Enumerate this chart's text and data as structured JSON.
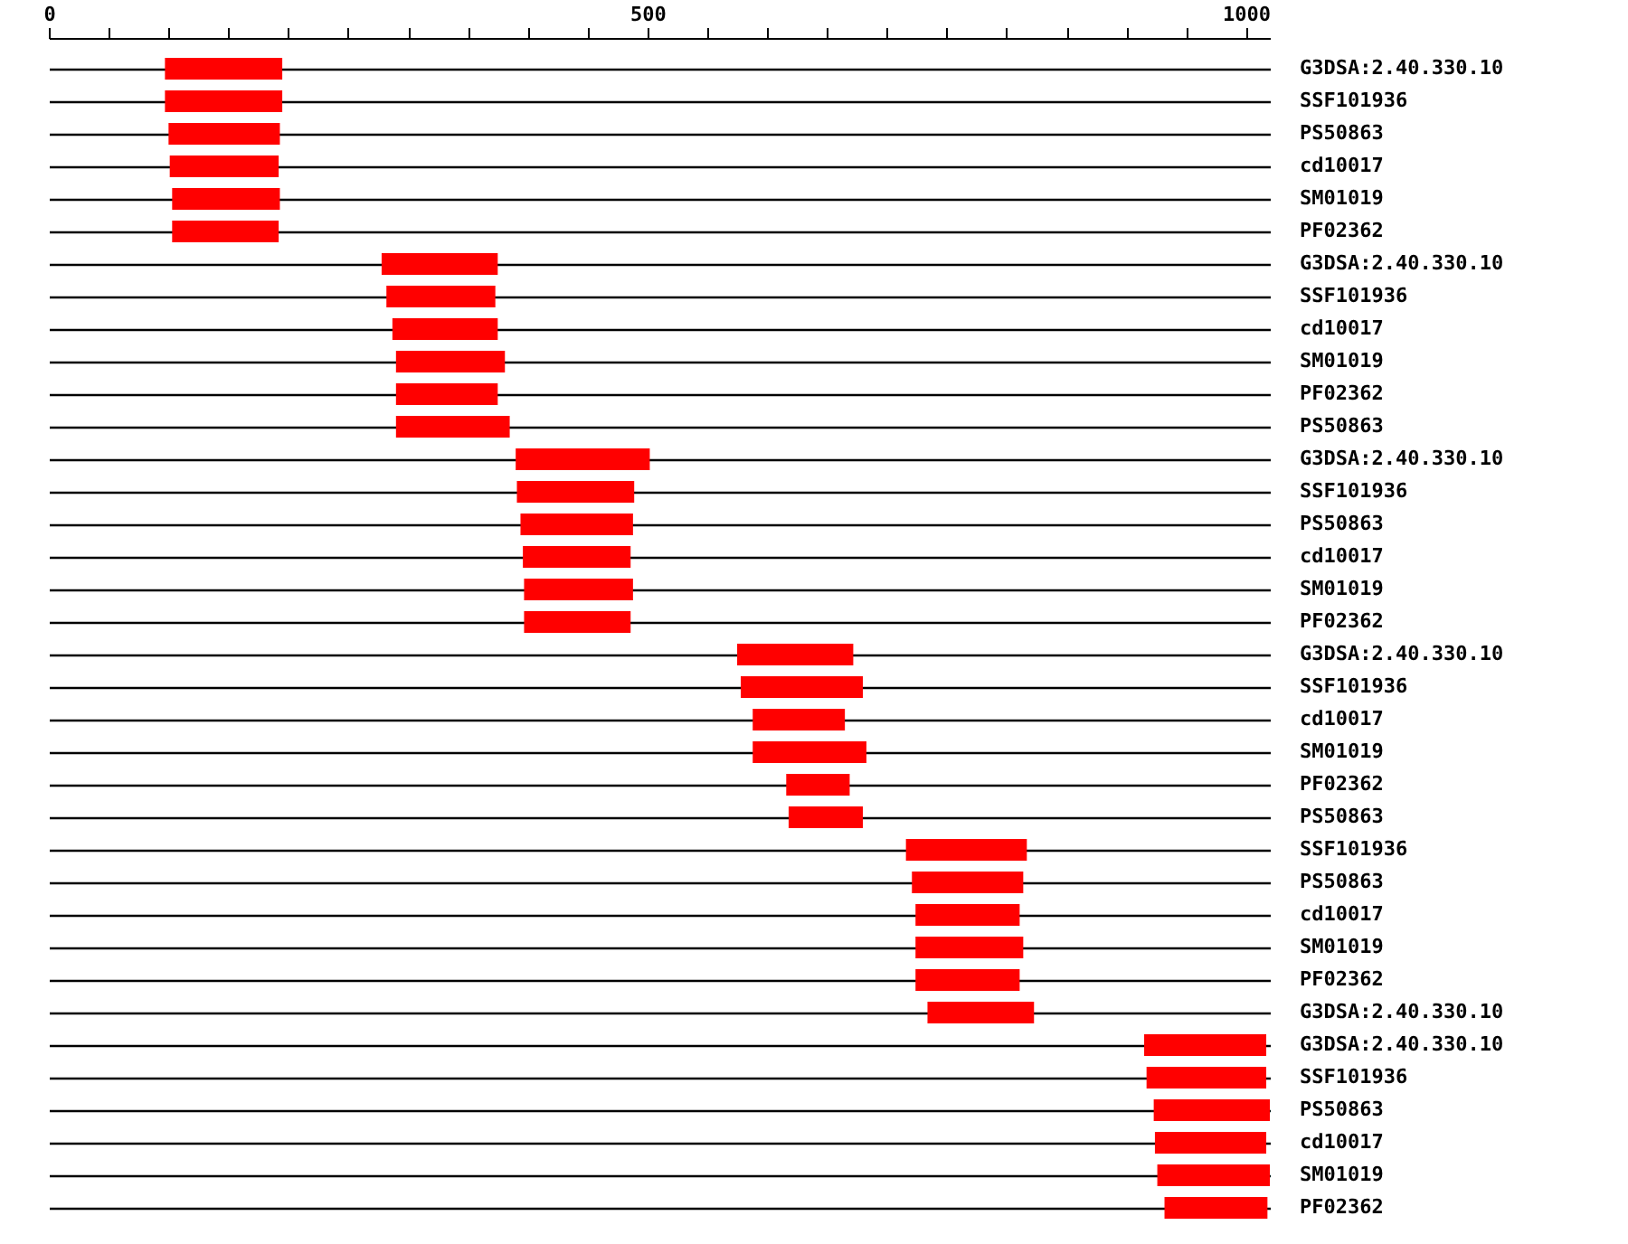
{
  "chart_data": {
    "type": "bar",
    "orientation": "horizontal",
    "grid": "y",
    "categories": [
      "G3DSA:2.40.330.10",
      "SSF101936",
      "PS50863",
      "cd10017",
      "SM01019",
      "PF02362",
      "G3DSA:2.40.330.10",
      "SSF101936",
      "cd10017",
      "SM01019",
      "PF02362",
      "PS50863",
      "G3DSA:2.40.330.10",
      "SSF101936",
      "PS50863",
      "cd10017",
      "SM01019",
      "PF02362",
      "G3DSA:2.40.330.10",
      "SSF101936",
      "cd10017",
      "SM01019",
      "PF02362",
      "PS50863",
      "SSF101936",
      "PS50863",
      "cd10017",
      "SM01019",
      "PF02362",
      "G3DSA:2.40.330.10",
      "G3DSA:2.40.330.10",
      "SSF101936",
      "PS50863",
      "cd10017",
      "SM01019",
      "PF02362"
    ],
    "series": [
      {
        "color": "#ff0000",
        "base": [
          97,
          97,
          100,
          101,
          103,
          103,
          278,
          282,
          287,
          290,
          290,
          290,
          390,
          391,
          394,
          396,
          397,
          397,
          575,
          578,
          588,
          588,
          616,
          618,
          716,
          721,
          724,
          724,
          724,
          734,
          915,
          917,
          923,
          924,
          926,
          932
        ],
        "values": [
          98,
          98,
          93,
          91,
          90,
          89,
          97,
          91,
          88,
          91,
          85,
          95,
          112,
          98,
          94,
          90,
          91,
          89,
          97,
          102,
          77,
          95,
          53,
          62,
          101,
          93,
          87,
          90,
          87,
          89,
          102,
          100,
          97,
          93,
          94,
          86
        ]
      }
    ],
    "xlim": [
      0,
      1020
    ],
    "xticks": [
      0,
      {
        "value": 50,
        "label": null
      },
      {
        "value": 100,
        "label": null
      },
      {
        "value": 150,
        "label": null
      },
      {
        "value": 200,
        "label": null
      },
      {
        "value": 250,
        "label": null
      },
      {
        "value": 300,
        "label": null
      },
      {
        "value": 350,
        "label": null
      },
      {
        "value": 400,
        "label": null
      },
      {
        "value": 450,
        "label": null
      },
      500,
      {
        "value": 550,
        "label": null
      },
      {
        "value": 600,
        "label": null
      },
      {
        "value": 650,
        "label": null
      },
      {
        "value": 700,
        "label": null
      },
      {
        "value": 750,
        "label": null
      },
      {
        "value": 800,
        "label": null
      },
      {
        "value": 850,
        "label": null
      },
      {
        "value": 900,
        "label": null
      },
      {
        "value": 950,
        "label": null
      },
      1000
    ]
  }
}
